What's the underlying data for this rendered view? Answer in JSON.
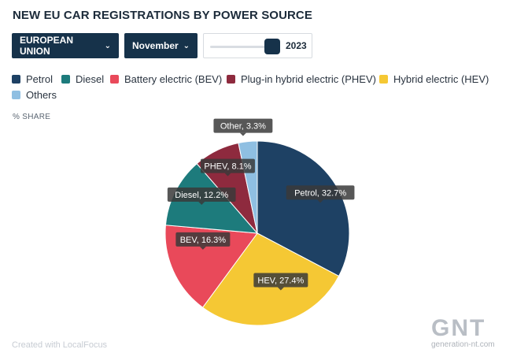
{
  "header": {
    "title": "NEW EU CAR REGISTRATIONS BY POWER SOURCE"
  },
  "filters": {
    "region": "EUROPEAN UNION",
    "month": "November",
    "year": "2023",
    "year_slider_fraction": 1.0
  },
  "chart_data": {
    "type": "pie",
    "unit_label": "% SHARE",
    "slices": [
      {
        "name": "Petrol",
        "value": 32.7,
        "label": "Petrol, 32.7%",
        "color": "#1e4164"
      },
      {
        "name": "Hybrid electric (HEV)",
        "value": 27.4,
        "label": "HEV, 27.4%",
        "color": "#f5c834"
      },
      {
        "name": "Battery electric (BEV)",
        "value": 16.3,
        "label": "BEV, 16.3%",
        "color": "#e9495a"
      },
      {
        "name": "Diesel",
        "value": 12.2,
        "label": "Diesel, 12.2%",
        "color": "#1d7b7c"
      },
      {
        "name": "Plug-in hybrid electric (PHEV)",
        "value": 8.1,
        "label": "PHEV, 8.1%",
        "color": "#8e2a3e"
      },
      {
        "name": "Others",
        "value": 3.3,
        "label": "Other, 3.3%",
        "color": "#8fbfe2"
      }
    ],
    "legend": [
      {
        "name": "Petrol",
        "color": "#1e4164"
      },
      {
        "name": "Diesel",
        "color": "#1d7b7c"
      },
      {
        "name": "Battery electric (BEV)",
        "color": "#e9495a"
      },
      {
        "name": "Plug-in hybrid electric (PHEV)",
        "color": "#8e2a3e"
      },
      {
        "name": "Hybrid electric (HEV)",
        "color": "#f5c834"
      },
      {
        "name": "Others",
        "color": "#8fbfe2"
      }
    ]
  },
  "footer": {
    "credit": "Created with LocalFocus"
  },
  "watermark": {
    "logo": "GNT",
    "url": "generation-nt.com"
  }
}
